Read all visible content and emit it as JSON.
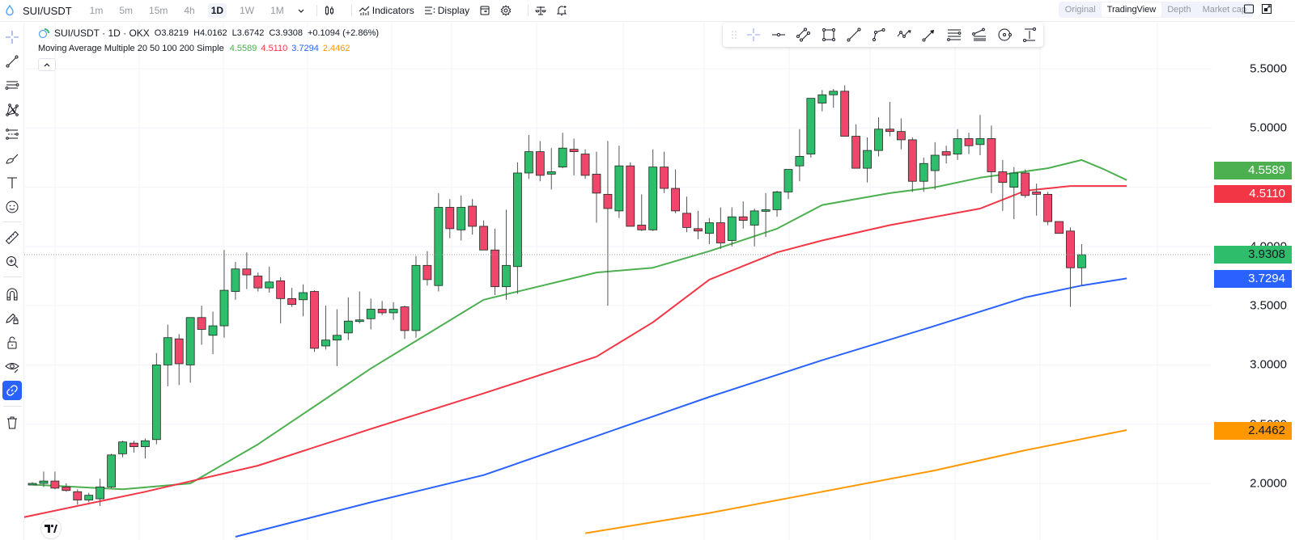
{
  "topbar": {
    "symbol": "SUI/USDT",
    "timeframes": [
      "1m",
      "5m",
      "15m",
      "4h",
      "1D",
      "1W",
      "1M"
    ],
    "active_timeframe": "1D",
    "indicators_label": "Indicators",
    "display_label": "Display",
    "views": [
      "Original",
      "TradingView",
      "Depth",
      "Market cap"
    ],
    "active_view": "TradingView"
  },
  "legend": {
    "title": "SUI/USDT · 1D · OKX",
    "open": "O3.8219",
    "high": "H4.0162",
    "low": "L3.6742",
    "close": "C3.9308",
    "change": "+0.1094 (+2.86%)",
    "indicator_name": "Moving Average Multiple 20 50 100 200 Simple",
    "ma_values": [
      "4.5589",
      "4.5110",
      "3.7294",
      "2.4462"
    ],
    "collapse_glyph": "^"
  },
  "sidebar_tools": [
    "crosshair-icon",
    "trend-line-icon",
    "horizontal-lines-icon",
    "pattern-icon",
    "fib-icon",
    "brush-icon",
    "text-icon",
    "emoji-icon",
    "ruler-icon",
    "zoom-in-icon",
    "magnet-icon",
    "lock-drawing-icon",
    "lock-icon",
    "eye-icon",
    "link-icon",
    "trash-icon"
  ],
  "drawing_toolbar": [
    "drag-handle-icon",
    "crosshair-icon",
    "horizontal-ray-icon",
    "parallel-channel-icon",
    "rectangle-icon",
    "trend-line-icon",
    "polyline-icon",
    "zigzag-icon",
    "arrow-icon",
    "fib-retracement-icon",
    "pitchfork-icon",
    "circle-icon",
    "price-range-icon"
  ],
  "colors": {
    "up": "#2ebd6b",
    "down": "#f0466b",
    "ma20": "#4caf50",
    "ma50": "#f23645",
    "ma100": "#2962ff",
    "ma200": "#ff9800",
    "grid": "#f0f3fa",
    "accent": "#2962ff"
  },
  "price_scale": {
    "ticks": [
      "5.5000",
      "5.0000",
      "4.0000",
      "3.5000",
      "3.0000",
      "2.5000",
      "2.0000"
    ],
    "tags": [
      {
        "value": "4.5589",
        "color": "#4caf50",
        "text_color": "#ffffff"
      },
      {
        "value": "4.5110",
        "color": "#f23645",
        "text_color": "#ffffff"
      },
      {
        "value": "3.9308",
        "color": "#2ebd6b",
        "text_color": "#131722"
      },
      {
        "value": "3.7294",
        "color": "#2962ff",
        "text_color": "#ffffff"
      },
      {
        "value": "2.4462",
        "color": "#ff9800",
        "text_color": "#131722"
      }
    ]
  },
  "chart_data": {
    "type": "candlestick",
    "title": "SUI/USDT · 1D · OKX",
    "ylim": [
      1.6,
      5.9
    ],
    "y_ticks": [
      2.0,
      2.5,
      3.0,
      3.5,
      4.0,
      4.5,
      5.0,
      5.5
    ],
    "grid": true,
    "last_price": 3.9308,
    "candles": [
      {
        "o": 2.0,
        "h": 2.01,
        "l": 1.99,
        "c": 2.0
      },
      {
        "o": 2.0,
        "h": 2.1,
        "l": 1.97,
        "c": 2.02
      },
      {
        "o": 2.02,
        "h": 2.1,
        "l": 1.95,
        "c": 1.96
      },
      {
        "o": 1.97,
        "h": 2.0,
        "l": 1.93,
        "c": 1.94
      },
      {
        "o": 1.93,
        "h": 1.95,
        "l": 1.82,
        "c": 1.86
      },
      {
        "o": 1.86,
        "h": 1.92,
        "l": 1.84,
        "c": 1.9
      },
      {
        "o": 1.87,
        "h": 2.04,
        "l": 1.81,
        "c": 1.97
      },
      {
        "o": 1.97,
        "h": 2.25,
        "l": 1.96,
        "c": 2.24
      },
      {
        "o": 2.25,
        "h": 2.36,
        "l": 2.22,
        "c": 2.35
      },
      {
        "o": 2.34,
        "h": 2.36,
        "l": 2.26,
        "c": 2.31
      },
      {
        "o": 2.31,
        "h": 2.38,
        "l": 2.21,
        "c": 2.36
      },
      {
        "o": 2.37,
        "h": 3.1,
        "l": 2.33,
        "c": 3.0
      },
      {
        "o": 3.0,
        "h": 3.34,
        "l": 2.82,
        "c": 3.23
      },
      {
        "o": 3.22,
        "h": 3.26,
        "l": 2.83,
        "c": 3.01
      },
      {
        "o": 3.0,
        "h": 3.35,
        "l": 2.85,
        "c": 3.4
      },
      {
        "o": 3.4,
        "h": 3.5,
        "l": 3.17,
        "c": 3.3
      },
      {
        "o": 3.25,
        "h": 3.45,
        "l": 3.09,
        "c": 3.33
      },
      {
        "o": 3.33,
        "h": 3.97,
        "l": 3.23,
        "c": 3.63
      },
      {
        "o": 3.62,
        "h": 3.87,
        "l": 3.55,
        "c": 3.81
      },
      {
        "o": 3.81,
        "h": 3.95,
        "l": 3.64,
        "c": 3.76
      },
      {
        "o": 3.75,
        "h": 3.78,
        "l": 3.62,
        "c": 3.65
      },
      {
        "o": 3.65,
        "h": 3.83,
        "l": 3.61,
        "c": 3.7
      },
      {
        "o": 3.71,
        "h": 3.74,
        "l": 3.35,
        "c": 3.56
      },
      {
        "o": 3.56,
        "h": 3.65,
        "l": 3.49,
        "c": 3.51
      },
      {
        "o": 3.55,
        "h": 3.68,
        "l": 3.41,
        "c": 3.61
      },
      {
        "o": 3.62,
        "h": 3.63,
        "l": 3.11,
        "c": 3.14
      },
      {
        "o": 3.16,
        "h": 3.5,
        "l": 3.13,
        "c": 3.21
      },
      {
        "o": 3.21,
        "h": 3.47,
        "l": 2.99,
        "c": 3.25
      },
      {
        "o": 3.27,
        "h": 3.57,
        "l": 3.21,
        "c": 3.37
      },
      {
        "o": 3.38,
        "h": 3.62,
        "l": 3.35,
        "c": 3.38
      },
      {
        "o": 3.39,
        "h": 3.56,
        "l": 3.3,
        "c": 3.47
      },
      {
        "o": 3.47,
        "h": 3.54,
        "l": 3.42,
        "c": 3.44
      },
      {
        "o": 3.44,
        "h": 3.53,
        "l": 3.38,
        "c": 3.47
      },
      {
        "o": 3.49,
        "h": 3.5,
        "l": 3.22,
        "c": 3.29
      },
      {
        "o": 3.29,
        "h": 3.92,
        "l": 3.23,
        "c": 3.84
      },
      {
        "o": 3.84,
        "h": 3.96,
        "l": 3.67,
        "c": 3.72
      },
      {
        "o": 3.67,
        "h": 4.45,
        "l": 3.62,
        "c": 4.33
      },
      {
        "o": 4.33,
        "h": 4.4,
        "l": 4.07,
        "c": 4.15
      },
      {
        "o": 4.14,
        "h": 4.43,
        "l": 4.05,
        "c": 4.33
      },
      {
        "o": 4.34,
        "h": 4.4,
        "l": 4.1,
        "c": 4.17
      },
      {
        "o": 4.17,
        "h": 4.22,
        "l": 3.97,
        "c": 3.97
      },
      {
        "o": 3.97,
        "h": 4.15,
        "l": 3.59,
        "c": 3.66
      },
      {
        "o": 3.66,
        "h": 4.31,
        "l": 3.55,
        "c": 3.84
      },
      {
        "o": 3.83,
        "h": 4.71,
        "l": 3.6,
        "c": 4.62
      },
      {
        "o": 4.62,
        "h": 4.94,
        "l": 4.57,
        "c": 4.8
      },
      {
        "o": 4.8,
        "h": 4.89,
        "l": 4.55,
        "c": 4.6
      },
      {
        "o": 4.61,
        "h": 4.83,
        "l": 4.48,
        "c": 4.63
      },
      {
        "o": 4.67,
        "h": 4.96,
        "l": 4.66,
        "c": 4.83
      },
      {
        "o": 4.82,
        "h": 4.91,
        "l": 4.6,
        "c": 4.8
      },
      {
        "o": 4.78,
        "h": 4.82,
        "l": 4.57,
        "c": 4.6
      },
      {
        "o": 4.61,
        "h": 4.8,
        "l": 4.2,
        "c": 4.45
      },
      {
        "o": 4.44,
        "h": 4.89,
        "l": 3.5,
        "c": 4.32
      },
      {
        "o": 4.3,
        "h": 4.85,
        "l": 4.24,
        "c": 4.68
      },
      {
        "o": 4.68,
        "h": 4.71,
        "l": 4.17,
        "c": 4.17
      },
      {
        "o": 4.18,
        "h": 4.44,
        "l": 4.13,
        "c": 4.14
      },
      {
        "o": 4.14,
        "h": 4.82,
        "l": 4.13,
        "c": 4.67
      },
      {
        "o": 4.67,
        "h": 4.8,
        "l": 4.45,
        "c": 4.49
      },
      {
        "o": 4.49,
        "h": 4.65,
        "l": 4.28,
        "c": 4.3
      },
      {
        "o": 4.28,
        "h": 4.42,
        "l": 4.12,
        "c": 4.16
      },
      {
        "o": 4.15,
        "h": 4.3,
        "l": 4.06,
        "c": 4.13
      },
      {
        "o": 4.11,
        "h": 4.24,
        "l": 4.02,
        "c": 4.2
      },
      {
        "o": 4.2,
        "h": 4.33,
        "l": 3.98,
        "c": 4.03
      },
      {
        "o": 4.05,
        "h": 4.33,
        "l": 4.0,
        "c": 4.25
      },
      {
        "o": 4.25,
        "h": 4.38,
        "l": 4.15,
        "c": 4.22
      },
      {
        "o": 4.18,
        "h": 4.32,
        "l": 4.0,
        "c": 4.3
      },
      {
        "o": 4.3,
        "h": 4.45,
        "l": 4.08,
        "c": 4.31
      },
      {
        "o": 4.31,
        "h": 4.47,
        "l": 4.25,
        "c": 4.46
      },
      {
        "o": 4.46,
        "h": 4.62,
        "l": 4.4,
        "c": 4.65
      },
      {
        "o": 4.68,
        "h": 4.99,
        "l": 4.55,
        "c": 4.76
      },
      {
        "o": 4.78,
        "h": 5.25,
        "l": 4.75,
        "c": 5.25
      },
      {
        "o": 5.21,
        "h": 5.32,
        "l": 5.14,
        "c": 5.28
      },
      {
        "o": 5.28,
        "h": 5.33,
        "l": 5.17,
        "c": 5.31
      },
      {
        "o": 5.31,
        "h": 5.36,
        "l": 4.96,
        "c": 4.93
      },
      {
        "o": 4.93,
        "h": 5.03,
        "l": 4.73,
        "c": 4.66
      },
      {
        "o": 4.66,
        "h": 4.92,
        "l": 4.54,
        "c": 4.81
      },
      {
        "o": 4.81,
        "h": 5.09,
        "l": 4.76,
        "c": 4.99
      },
      {
        "o": 4.99,
        "h": 5.22,
        "l": 4.93,
        "c": 4.97
      },
      {
        "o": 4.97,
        "h": 5.08,
        "l": 4.82,
        "c": 4.9
      },
      {
        "o": 4.9,
        "h": 4.92,
        "l": 4.46,
        "c": 4.55
      },
      {
        "o": 4.55,
        "h": 4.75,
        "l": 4.46,
        "c": 4.7
      },
      {
        "o": 4.64,
        "h": 4.88,
        "l": 4.48,
        "c": 4.77
      },
      {
        "o": 4.8,
        "h": 4.85,
        "l": 4.7,
        "c": 4.77
      },
      {
        "o": 4.78,
        "h": 4.99,
        "l": 4.73,
        "c": 4.91
      },
      {
        "o": 4.91,
        "h": 4.96,
        "l": 4.78,
        "c": 4.85
      },
      {
        "o": 4.86,
        "h": 5.11,
        "l": 4.77,
        "c": 4.91
      },
      {
        "o": 4.91,
        "h": 5.02,
        "l": 4.45,
        "c": 4.63
      },
      {
        "o": 4.63,
        "h": 4.73,
        "l": 4.3,
        "c": 4.54
      },
      {
        "o": 4.5,
        "h": 4.67,
        "l": 4.23,
        "c": 4.62
      },
      {
        "o": 4.62,
        "h": 4.65,
        "l": 4.41,
        "c": 4.43
      },
      {
        "o": 4.46,
        "h": 4.53,
        "l": 4.26,
        "c": 4.44
      },
      {
        "o": 4.44,
        "h": 4.46,
        "l": 4.18,
        "c": 4.21
      },
      {
        "o": 4.21,
        "h": 4.2,
        "l": 4.11,
        "c": 4.11
      },
      {
        "o": 4.13,
        "h": 4.16,
        "l": 3.49,
        "c": 3.82
      },
      {
        "o": 3.82,
        "h": 4.02,
        "l": 3.67,
        "c": 3.93
      }
    ],
    "series": [
      {
        "name": "MA 20",
        "color": "#4caf50",
        "last": 4.5589,
        "points": [
          [
            0,
            1.99
          ],
          [
            8,
            1.95
          ],
          [
            14,
            2.0
          ],
          [
            20,
            2.33
          ],
          [
            30,
            2.97
          ],
          [
            40,
            3.55
          ],
          [
            50,
            3.78
          ],
          [
            55,
            3.82
          ],
          [
            60,
            3.96
          ],
          [
            66,
            4.15
          ],
          [
            70,
            4.35
          ],
          [
            76,
            4.45
          ],
          [
            80,
            4.5
          ],
          [
            84,
            4.58
          ],
          [
            87,
            4.62
          ],
          [
            90,
            4.66
          ],
          [
            93,
            4.73
          ],
          [
            95,
            4.65
          ],
          [
            97,
            4.56
          ]
        ]
      },
      {
        "name": "MA 50",
        "color": "#f23645",
        "last": 4.511,
        "points": [
          [
            -1,
            1.71
          ],
          [
            10,
            1.93
          ],
          [
            20,
            2.15
          ],
          [
            30,
            2.46
          ],
          [
            40,
            2.76
          ],
          [
            50,
            3.07
          ],
          [
            55,
            3.36
          ],
          [
            60,
            3.72
          ],
          [
            66,
            3.95
          ],
          [
            70,
            4.05
          ],
          [
            76,
            4.18
          ],
          [
            84,
            4.32
          ],
          [
            88,
            4.47
          ],
          [
            92,
            4.51
          ],
          [
            97,
            4.51
          ]
        ]
      },
      {
        "name": "MA 100",
        "color": "#2962ff",
        "last": 3.7294,
        "points": [
          [
            18,
            1.55
          ],
          [
            30,
            1.84
          ],
          [
            40,
            2.07
          ],
          [
            50,
            2.4
          ],
          [
            60,
            2.73
          ],
          [
            70,
            3.04
          ],
          [
            80,
            3.33
          ],
          [
            88,
            3.57
          ],
          [
            93,
            3.67
          ],
          [
            97,
            3.73
          ]
        ]
      },
      {
        "name": "MA 200",
        "color": "#ff9800",
        "last": 2.4462,
        "points": [
          [
            49,
            1.58
          ],
          [
            60,
            1.75
          ],
          [
            70,
            1.93
          ],
          [
            80,
            2.11
          ],
          [
            88,
            2.28
          ],
          [
            97,
            2.45
          ]
        ]
      }
    ]
  }
}
